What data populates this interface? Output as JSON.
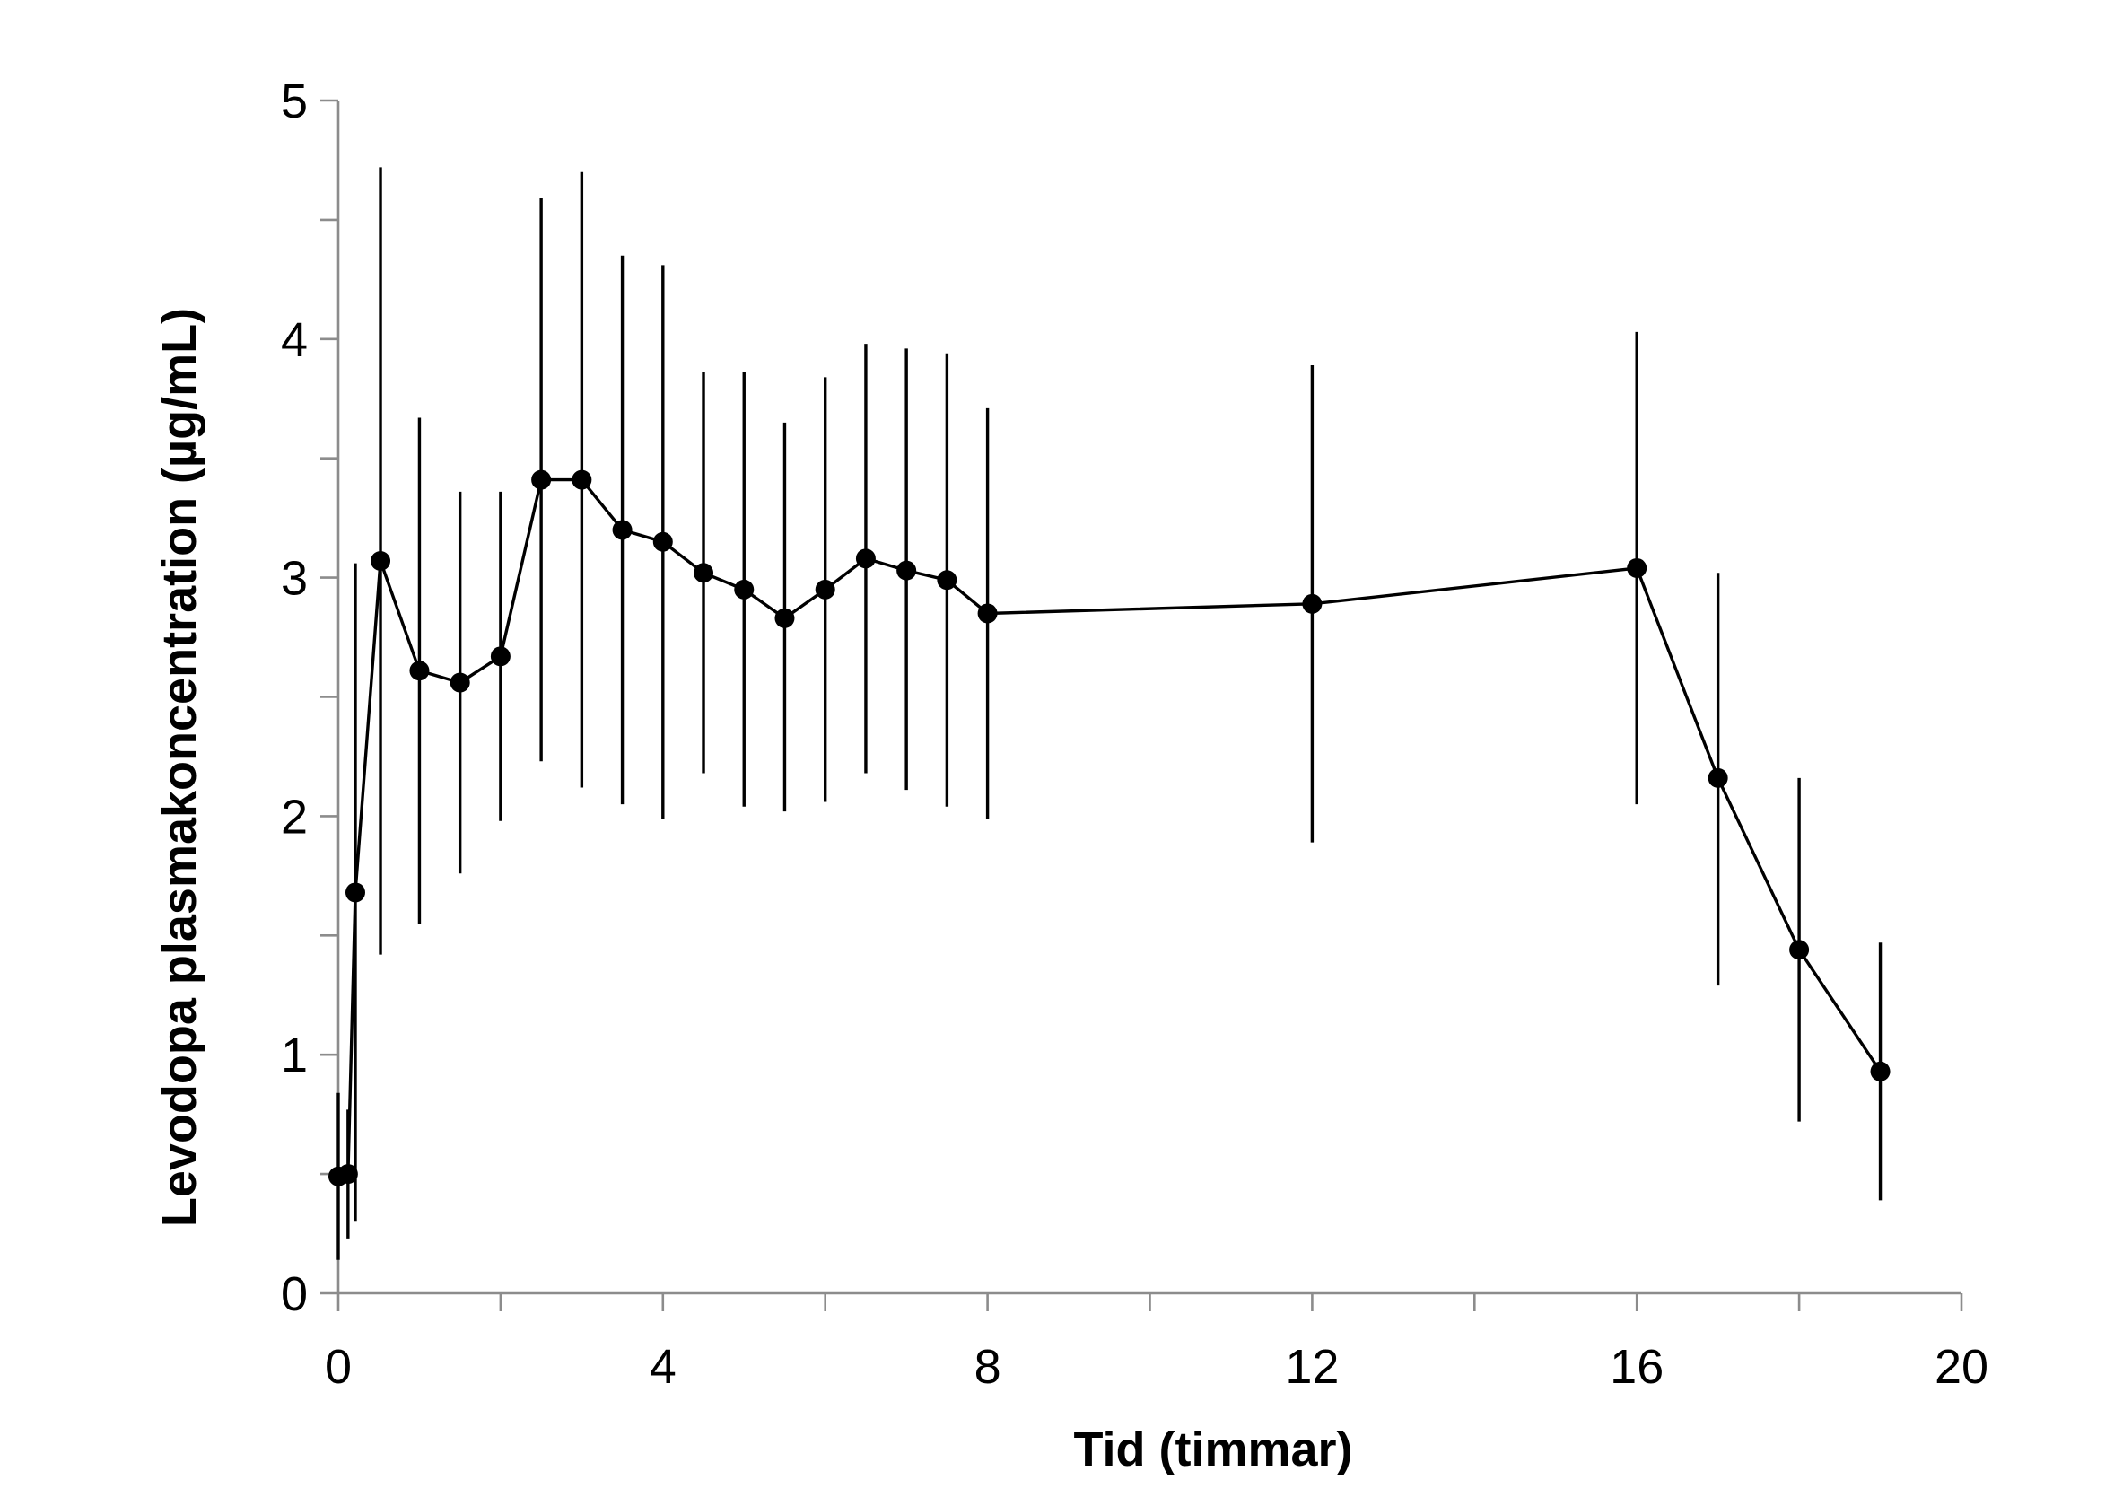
{
  "chart_data": {
    "type": "line",
    "title": "",
    "xlabel": "Tid (timmar)",
    "ylabel": "Levodopa plasmakoncentration (µg/mL)",
    "xlim": [
      0,
      20
    ],
    "ylim": [
      0,
      5
    ],
    "x_ticks": [
      0,
      4,
      8,
      12,
      16,
      20
    ],
    "x_minor_ticks": [
      2,
      6,
      10,
      14,
      18
    ],
    "y_ticks": [
      0,
      1,
      2,
      3,
      4,
      5
    ],
    "y_minor_ticks": [
      0.5,
      1.5,
      2.5,
      3.5,
      4.5
    ],
    "x_tick_labels": [
      "0",
      "4",
      "8",
      "12",
      "16",
      "20"
    ],
    "y_tick_labels": [
      "0",
      "1",
      "2",
      "3",
      "4",
      "5"
    ],
    "grid": false,
    "series": [
      {
        "name": "Levodopa",
        "color": "#000000",
        "x": [
          0,
          0.12,
          0.21,
          0.52,
          1,
          1.5,
          2,
          2.5,
          3,
          3.5,
          4,
          4.5,
          5,
          5.5,
          6,
          6.5,
          7,
          7.5,
          8,
          12,
          16,
          17,
          18,
          19
        ],
        "y": [
          0.49,
          0.5,
          1.68,
          3.07,
          2.61,
          2.56,
          2.67,
          3.41,
          3.41,
          3.2,
          3.15,
          3.02,
          2.95,
          2.83,
          2.95,
          3.08,
          3.03,
          2.99,
          2.85,
          2.89,
          3.04,
          2.16,
          1.44,
          0.93
        ],
        "err_low": [
          0.14,
          0.23,
          0.3,
          1.42,
          1.55,
          1.76,
          1.98,
          2.23,
          2.12,
          2.05,
          1.99,
          2.18,
          2.04,
          2.02,
          2.06,
          2.18,
          2.11,
          2.04,
          1.99,
          1.89,
          2.05,
          1.29,
          0.72,
          0.39
        ],
        "err_high": [
          0.84,
          0.77,
          3.06,
          4.72,
          3.67,
          3.36,
          3.36,
          4.59,
          4.7,
          4.35,
          4.31,
          3.86,
          3.86,
          3.65,
          3.84,
          3.98,
          3.96,
          3.94,
          3.71,
          3.89,
          4.03,
          3.02,
          2.16,
          1.47
        ]
      }
    ]
  }
}
